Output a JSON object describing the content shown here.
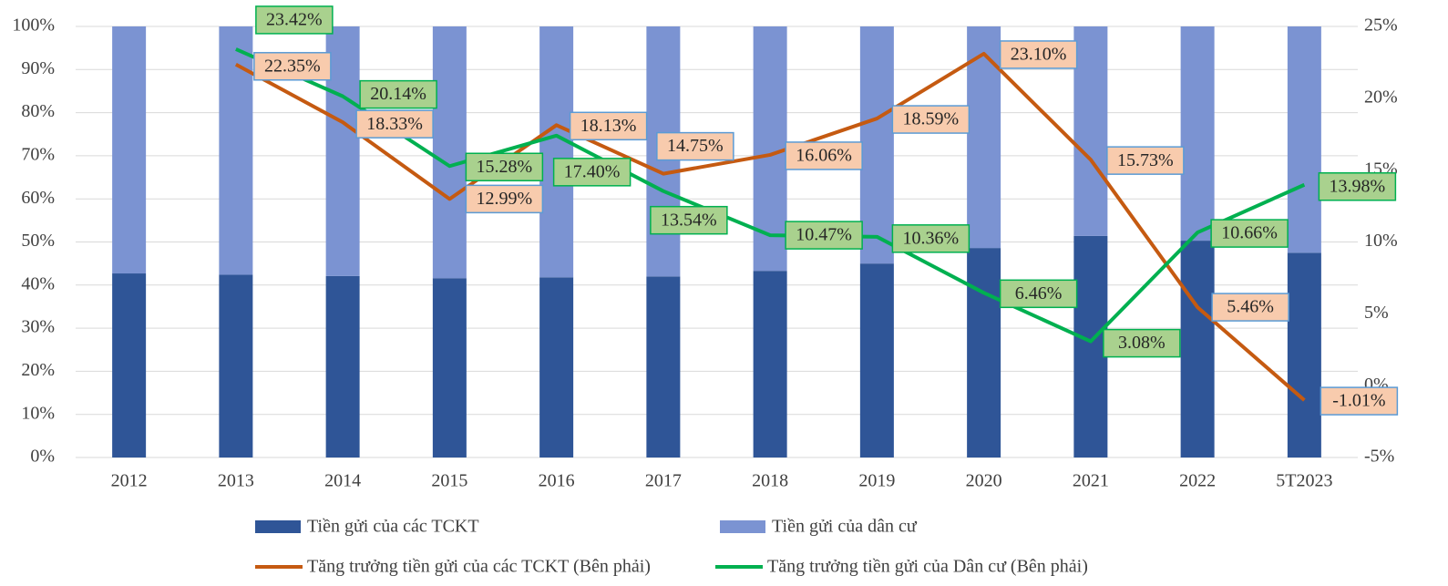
{
  "chart_data": {
    "type": "bar_line_combo",
    "categories": [
      "2012",
      "2013",
      "2014",
      "2015",
      "2016",
      "2017",
      "2018",
      "2019",
      "2020",
      "2021",
      "2022",
      "5T2023"
    ],
    "ylim": [
      0,
      100
    ],
    "yticks": [
      {
        "value": 0,
        "label": "0%"
      },
      {
        "value": 10,
        "label": "10%"
      },
      {
        "value": 20,
        "label": "20%"
      },
      {
        "value": 30,
        "label": "30%"
      },
      {
        "value": 40,
        "label": "40%"
      },
      {
        "value": 50,
        "label": "50%"
      },
      {
        "value": 60,
        "label": "60%"
      },
      {
        "value": 70,
        "label": "70%"
      },
      {
        "value": 80,
        "label": "80%"
      },
      {
        "value": 90,
        "label": "90%"
      },
      {
        "value": 100,
        "label": "100%"
      }
    ],
    "y2lim": [
      -5,
      25
    ],
    "y2ticks": [
      {
        "value": -5,
        "label": "-5%"
      },
      {
        "value": 0,
        "label": "0%"
      },
      {
        "value": 5,
        "label": "5%"
      },
      {
        "value": 10,
        "label": "10%"
      },
      {
        "value": 15,
        "label": "15%"
      },
      {
        "value": 20,
        "label": "20%"
      },
      {
        "value": 25,
        "label": "25%"
      }
    ],
    "grid": true,
    "legend": "bottom",
    "series": [
      {
        "name": "Tiền gửi của các TCKT",
        "type": "bar",
        "stack": true,
        "color": "#2f5597",
        "values": [
          42.7,
          42.4,
          42.1,
          41.6,
          41.8,
          42.0,
          43.3,
          45.0,
          48.6,
          51.4,
          50.3,
          47.5
        ]
      },
      {
        "name": "Tiền gửi của dân cư",
        "type": "bar",
        "stack": true,
        "color": "#7b93d2",
        "values": [
          57.3,
          57.6,
          57.9,
          58.4,
          58.2,
          58.0,
          56.7,
          55.0,
          51.4,
          48.6,
          49.7,
          52.5
        ]
      },
      {
        "name": "Tăng trưởng tiền gửi của các TCKT (Bên phải)",
        "type": "line",
        "axis": "y2",
        "color": "#c55a11",
        "values": [
          null,
          22.35,
          18.33,
          12.99,
          18.13,
          14.75,
          16.06,
          18.59,
          23.1,
          15.73,
          5.46,
          -1.01
        ],
        "value_labels": [
          null,
          "22.35%",
          "18.33%",
          "12.99%",
          "18.13%",
          "14.75%",
          "16.06%",
          "18.59%",
          "23.10%",
          "15.73%",
          "5.46%",
          "-1.01%"
        ]
      },
      {
        "name": "Tăng trưởng tiền gửi của Dân cư (Bên phải)",
        "type": "line",
        "axis": "y2",
        "color": "#00b050",
        "values": [
          null,
          23.42,
          20.14,
          15.28,
          17.4,
          13.54,
          10.47,
          10.36,
          6.46,
          3.08,
          10.66,
          13.98
        ],
        "value_labels": [
          null,
          "23.42%",
          "20.14%",
          "15.28%",
          "17.40%",
          "13.54%",
          "10.47%",
          "10.36%",
          "6.46%",
          "3.08%",
          "10.66%",
          "13.98%"
        ]
      }
    ]
  }
}
